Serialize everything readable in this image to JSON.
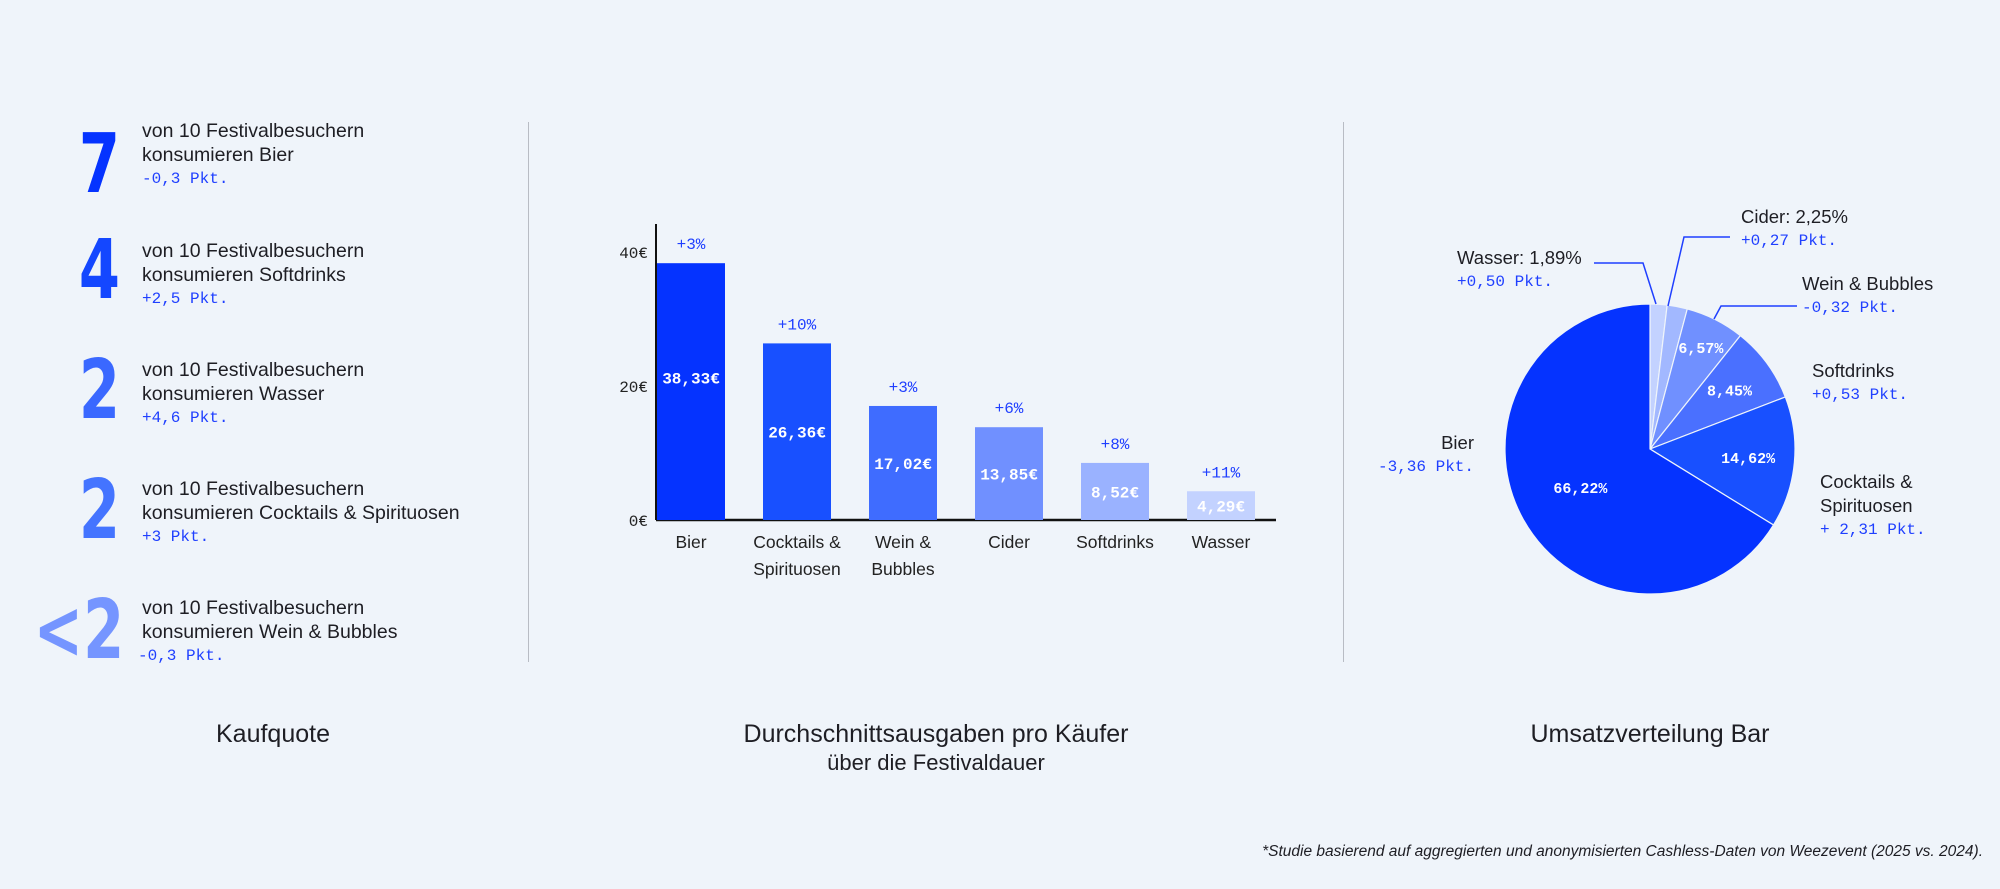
{
  "kaufquote": {
    "title": "Kaufquote",
    "items": [
      {
        "number": "7",
        "line1": "von 10 Festivalbesuchern",
        "line2": "konsumieren Bier",
        "delta": "-0,3 Pkt.",
        "color": "#0533ff"
      },
      {
        "number": "4",
        "line1": "von 10 Festivalbesuchern",
        "line2": "konsumieren Softdrinks",
        "delta": "+2,5 Pkt.",
        "color": "#1447ff"
      },
      {
        "number": "2",
        "line1": "von 10 Festivalbesuchern",
        "line2": "konsumieren Wasser",
        "delta": "+4,6 Pkt.",
        "color": "#3a68ff"
      },
      {
        "number": "2",
        "line1": "von 10 Festivalbesuchern",
        "line2": "konsumieren Cocktails & Spirituosen",
        "delta": "+3 Pkt.",
        "color": "#4474ff"
      },
      {
        "number": "<2",
        "line1": "von 10 Festivalbesuchern",
        "line2": "konsumieren Wein & Bubbles",
        "delta": "-0,3 Pkt.",
        "color": "#7595ff"
      }
    ]
  },
  "bar_section": {
    "title": "Durchschnittsausgaben pro Käufer",
    "subtitle": "über die Festivaldauer"
  },
  "pie_section": {
    "title": "Umsatzverteilung Bar"
  },
  "footnote": "*Studie basierend auf aggregierten und anonymisierten Cashless-Daten von Weezevent (2025 vs. 2024).",
  "chart_data": [
    {
      "type": "bar",
      "title": "Durchschnittsausgaben pro Käufer",
      "subtitle": "über die Festivaldauer",
      "categories": [
        [
          "Bier"
        ],
        [
          "Cocktails &",
          "Spirituosen"
        ],
        [
          "Wein &",
          "Bubbles"
        ],
        [
          "Cider"
        ],
        [
          "Softdrinks"
        ],
        [
          "Wasser"
        ]
      ],
      "values": [
        38.33,
        26.36,
        17.02,
        13.85,
        8.52,
        4.29
      ],
      "value_labels": [
        "38,33€",
        "26,36€",
        "17,02€",
        "13,85€",
        "8,52€",
        "4,29€"
      ],
      "change_labels": [
        "+3%",
        "+10%",
        "+3%",
        "+6%",
        "+8%",
        "+11%"
      ],
      "colors": [
        "#0533ff",
        "#1850ff",
        "#3f6cff",
        "#7090ff",
        "#9ab2ff",
        "#c3d2ff"
      ],
      "yticks": [
        0,
        20,
        40
      ],
      "ytick_labels": [
        "0€",
        "20€",
        "40€"
      ],
      "ylim": [
        0,
        45
      ],
      "grid": false
    },
    {
      "type": "pie",
      "title": "Umsatzverteilung Bar",
      "start": "top, clockwise",
      "slices": [
        {
          "name": "Wasser",
          "value": 1.89,
          "label": "Wasser: 1,89%",
          "inner": "",
          "delta": "+0,50 Pkt.",
          "color": "#c3d2ff"
        },
        {
          "name": "Cider",
          "value": 2.25,
          "label": "Cider: 2,25%",
          "inner": "",
          "delta": "+0,27 Pkt.",
          "color": "#a2b8ff"
        },
        {
          "name": "Wein & Bubbles",
          "value": 6.57,
          "label": "Wein & Bubbles",
          "inner": "6,57%",
          "delta": "-0,32 Pkt.",
          "color": "#7090ff"
        },
        {
          "name": "Softdrinks",
          "value": 8.45,
          "label": "Softdrinks",
          "inner": "8,45%",
          "delta": "+0,53 Pkt.",
          "color": "#4a70ff"
        },
        {
          "name": "Cocktails & Spirituosen",
          "value": 14.62,
          "label": "Cocktails &",
          "label2": "Spirituosen",
          "inner": "14,62%",
          "delta": "+ 2,31 Pkt.",
          "color": "#1850ff"
        },
        {
          "name": "Bier",
          "value": 66.22,
          "label": "Bier",
          "inner": "66,22%",
          "delta": "-3,36 Pkt.",
          "color": "#0533ff"
        }
      ]
    }
  ]
}
